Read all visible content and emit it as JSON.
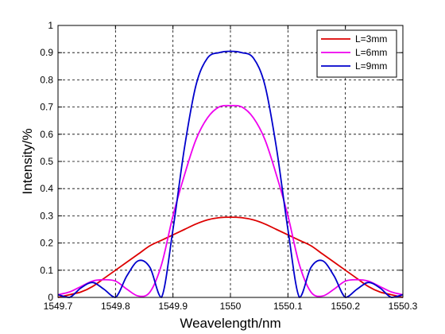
{
  "chart_data": {
    "type": "line",
    "title": "",
    "xlabel": "Weavelength/nm",
    "ylabel": "Intensity/%",
    "xlim": [
      1549.7,
      1550.3
    ],
    "ylim": [
      0,
      1
    ],
    "x_ticks": [
      1549.7,
      1549.8,
      1549.9,
      1550,
      1550.1,
      1550.2,
      1550.3
    ],
    "x_tick_labels": [
      "1549.7",
      "1549.8",
      "1549.9",
      "1550",
      "1550.1",
      "1550.2",
      "1550.3"
    ],
    "y_ticks": [
      0,
      0.1,
      0.2,
      0.3,
      0.4,
      0.5,
      0.6,
      0.7,
      0.8,
      0.9,
      1
    ],
    "y_tick_labels": [
      "0",
      "0.1",
      "0.2",
      "0.3",
      "0.4",
      "0.5",
      "0.6",
      "0.7",
      "0.8",
      "0.9",
      "1"
    ],
    "grid": true,
    "legend_position": "top-right",
    "x": [
      1549.7,
      1549.72,
      1549.74,
      1549.76,
      1549.78,
      1549.8,
      1549.82,
      1549.84,
      1549.86,
      1549.88,
      1549.9,
      1549.92,
      1549.94,
      1549.96,
      1549.98,
      1550,
      1550.02,
      1550.04,
      1550.06,
      1550.08,
      1550.1,
      1550.12,
      1550.14,
      1550.16,
      1550.18,
      1550.2,
      1550.22,
      1550.24,
      1550.26,
      1550.28,
      1550.3
    ],
    "series": [
      {
        "name": "L=3mm",
        "color": "#dd0000",
        "values": [
          0.0,
          0.01,
          0.02,
          0.04,
          0.07,
          0.1,
          0.13,
          0.16,
          0.19,
          0.21,
          0.23,
          0.25,
          0.27,
          0.285,
          0.293,
          0.295,
          0.293,
          0.285,
          0.27,
          0.25,
          0.23,
          0.21,
          0.19,
          0.16,
          0.13,
          0.1,
          0.07,
          0.04,
          0.02,
          0.01,
          0.0
        ]
      },
      {
        "name": "L=6mm",
        "color": "#ee00ee",
        "values": [
          0.01,
          0.02,
          0.04,
          0.06,
          0.065,
          0.06,
          0.03,
          0.005,
          0.02,
          0.12,
          0.3,
          0.45,
          0.58,
          0.66,
          0.7,
          0.705,
          0.7,
          0.66,
          0.58,
          0.45,
          0.3,
          0.12,
          0.02,
          0.005,
          0.03,
          0.06,
          0.065,
          0.06,
          0.04,
          0.02,
          0.01
        ]
      },
      {
        "name": "L=9mm",
        "color": "#0000cc",
        "values": [
          0.01,
          0.0,
          0.035,
          0.055,
          0.03,
          0.0,
          0.08,
          0.135,
          0.11,
          0.0,
          0.25,
          0.55,
          0.78,
          0.88,
          0.9,
          0.905,
          0.9,
          0.88,
          0.78,
          0.55,
          0.25,
          0.0,
          0.11,
          0.135,
          0.08,
          0.0,
          0.03,
          0.055,
          0.035,
          0.0,
          0.01
        ]
      }
    ]
  }
}
